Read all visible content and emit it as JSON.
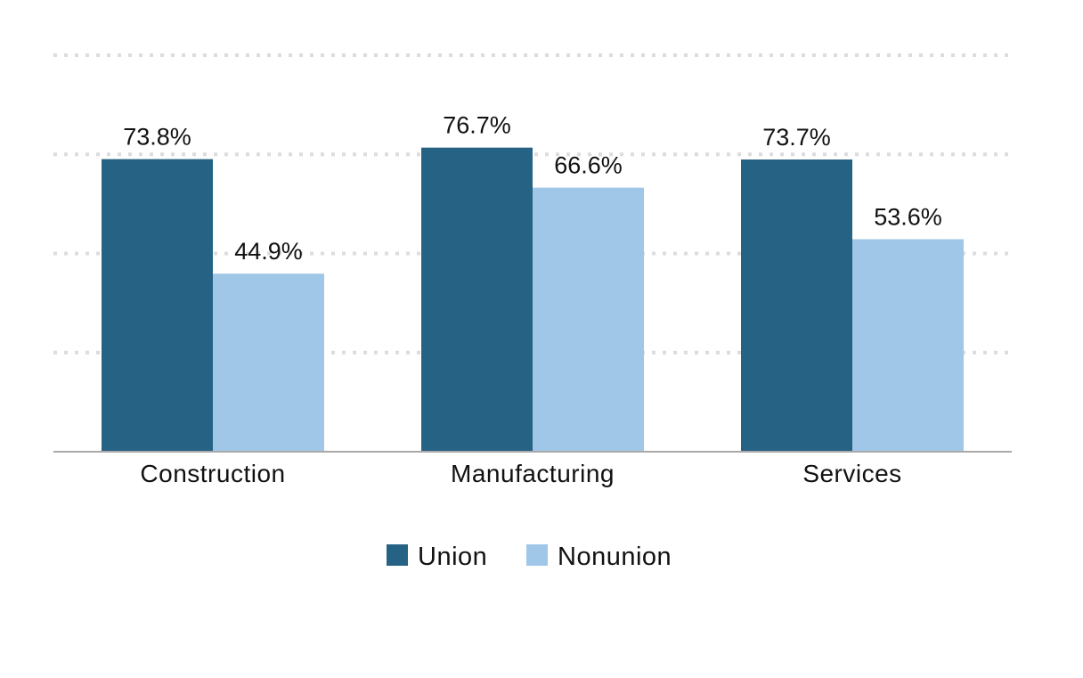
{
  "chart_data": {
    "type": "bar",
    "categories": [
      "Construction",
      "Manufacturing",
      "Services"
    ],
    "series": [
      {
        "name": "Union",
        "values": [
          73.8,
          76.7,
          73.7
        ],
        "labels": [
          "73.8%",
          "76.7%",
          "73.7%"
        ],
        "color": "#256283"
      },
      {
        "name": "Nonunion",
        "values": [
          44.9,
          66.6,
          53.6
        ],
        "labels": [
          "44.9%",
          "66.6%",
          "53.6%"
        ],
        "color": "#a0c7e8"
      }
    ],
    "ylim": [
      0,
      100
    ],
    "yticks": [
      0,
      25,
      50,
      75,
      100
    ],
    "grid": true,
    "legend": "bottom-center",
    "title": "",
    "xlabel": "",
    "ylabel": ""
  }
}
